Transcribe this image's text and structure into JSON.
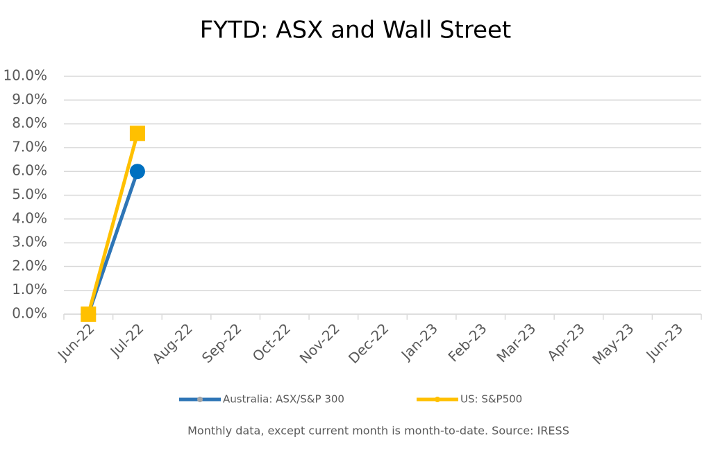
{
  "chart_data": {
    "type": "line",
    "title": "FYTD: ASX and Wall Street",
    "categories": [
      "Jun-22",
      "Jul-22",
      "Aug-22",
      "Sep-22",
      "Oct-22",
      "Nov-22",
      "Dec-22",
      "Jan-23",
      "Feb-23",
      "Mar-23",
      "Apr-23",
      "May-23",
      "Jun-23"
    ],
    "series": [
      {
        "name": "Australia: ASX/S&P 300",
        "color": "#2e75b6",
        "marker_color": "#0070c0",
        "marker": "circle",
        "values": [
          0,
          6.0,
          null,
          null,
          null,
          null,
          null,
          null,
          null,
          null,
          null,
          null,
          null
        ]
      },
      {
        "name": "US: S&P500",
        "color": "#ffc000",
        "marker_color": "#ffc000",
        "marker": "square",
        "values": [
          0,
          7.6,
          null,
          null,
          null,
          null,
          null,
          null,
          null,
          null,
          null,
          null,
          null
        ]
      }
    ],
    "ylim": [
      0,
      10
    ],
    "yticks": [
      {
        "value": 0,
        "label": "0.0%"
      },
      {
        "value": 1,
        "label": "1.0%"
      },
      {
        "value": 2,
        "label": "2.0%"
      },
      {
        "value": 3,
        "label": "3.0%"
      },
      {
        "value": 4,
        "label": "4.0%"
      },
      {
        "value": 5,
        "label": "5.0%"
      },
      {
        "value": 6,
        "label": "6.0%"
      },
      {
        "value": 7,
        "label": "7.0%"
      },
      {
        "value": 8,
        "label": "8.0%"
      },
      {
        "value": 9,
        "label": "9.0%"
      },
      {
        "value": 10,
        "label": "10.0%"
      }
    ],
    "grid": true,
    "legend": "bottom",
    "note": "Monthly data, except current month is month-to-date.  Source: IRESS"
  }
}
